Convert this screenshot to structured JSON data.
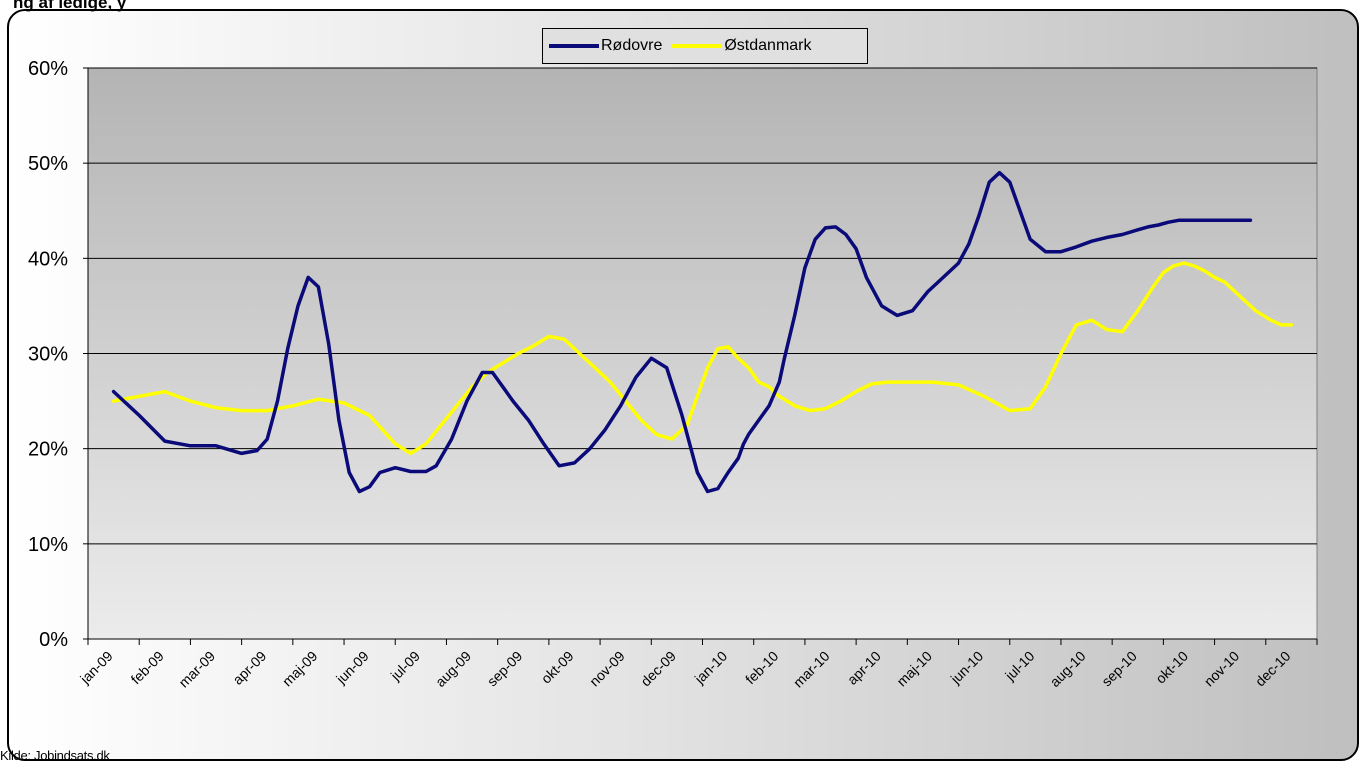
{
  "header": {
    "title_fragment": "ng af ledige, y"
  },
  "source_note": "Kilde: Jobindsats.dk",
  "colors": {
    "rodovre": "#0a0a78",
    "ostdanmark": "#ffff00"
  },
  "chart_data": {
    "type": "line",
    "title": "",
    "xlabel": "",
    "ylabel": "",
    "ylim": [
      0,
      60
    ],
    "yticks": [
      "0%",
      "10%",
      "20%",
      "30%",
      "40%",
      "50%",
      "60%"
    ],
    "categories": [
      "jan-09",
      "feb-09",
      "mar-09",
      "apr-09",
      "maj-09",
      "jun-09",
      "jul-09",
      "aug-09",
      "sep-09",
      "okt-09",
      "nov-09",
      "dec-09",
      "jan-10",
      "feb-10",
      "mar-10",
      "apr-10",
      "maj-10",
      "jun-10",
      "jul-10",
      "aug-10",
      "sep-10",
      "okt-10",
      "nov-10",
      "dec-10"
    ],
    "grid": true,
    "legend": "top-center",
    "series": [
      {
        "name": "Rødovre",
        "color": "#0a0a78",
        "x": [
          0.5,
          1.0,
          1.5,
          2.0,
          2.5,
          3.0,
          3.3,
          3.5,
          3.7,
          3.9,
          4.1,
          4.3,
          4.5,
          4.7,
          4.9,
          5.1,
          5.3,
          5.5,
          5.7,
          6.0,
          6.3,
          6.6,
          6.8,
          7.1,
          7.4,
          7.7,
          7.9,
          8.1,
          8.3,
          8.6,
          8.9,
          9.2,
          9.5,
          9.8,
          10.1,
          10.4,
          10.7,
          11.0,
          11.3,
          11.6,
          11.9,
          12.1,
          12.3,
          12.5,
          12.7,
          12.8,
          12.9,
          13.1,
          13.3,
          13.5,
          13.6,
          13.8,
          14.0,
          14.2,
          14.4,
          14.6,
          14.8,
          15.0,
          15.2,
          15.5,
          15.8,
          16.1,
          16.4,
          16.6,
          16.8,
          17.0,
          17.2,
          17.4,
          17.6,
          17.8,
          18.0,
          18.2,
          18.4,
          18.7,
          19.0,
          19.3,
          19.6,
          19.9,
          20.2,
          20.5,
          20.7,
          20.9,
          21.1,
          21.3,
          21.4,
          21.5,
          21.7,
          21.9,
          22.1,
          22.3,
          22.5,
          22.7,
          23.0,
          23.3,
          23.5
        ],
        "values": [
          26.0,
          23.5,
          20.8,
          20.3,
          20.3,
          19.5,
          19.8,
          21.0,
          25.0,
          30.5,
          35.0,
          38.0,
          37.0,
          31.0,
          23.0,
          17.5,
          15.5,
          16.0,
          17.5,
          18.0,
          17.6,
          17.6,
          18.2,
          21.0,
          25.0,
          28.0,
          28.0,
          26.5,
          25.0,
          23.0,
          20.5,
          18.2,
          18.5,
          20.0,
          22.0,
          24.5,
          27.5,
          29.5,
          28.5,
          23.5,
          17.5,
          15.5,
          15.8,
          17.5,
          19.0,
          20.5,
          21.5,
          23.0,
          24.5,
          27.0,
          29.5,
          34.0,
          39.0,
          42.0,
          43.2,
          43.3,
          42.5,
          41.0,
          38.0,
          35.0,
          34.0,
          34.5,
          36.5,
          37.5,
          38.5,
          39.5,
          41.5,
          44.5,
          48.0,
          49.0,
          48.0,
          45.0,
          42.0,
          40.7,
          40.7,
          41.2,
          41.8,
          42.2,
          42.5,
          43.0,
          43.3,
          43.5,
          43.8,
          44.0,
          44.0,
          44.0,
          44.0,
          44.0,
          44.0,
          44.0,
          44.0,
          44.0,
          44.0,
          44.0,
          44.0
        ]
      },
      {
        "name": "Østdanmark",
        "color": "#ffff00",
        "x": [
          0.5,
          1.0,
          1.5,
          2.0,
          2.5,
          3.0,
          3.5,
          4.0,
          4.5,
          5.0,
          5.5,
          6.0,
          6.3,
          6.6,
          6.9,
          7.2,
          7.5,
          7.8,
          8.1,
          8.4,
          8.7,
          9.0,
          9.3,
          9.6,
          9.9,
          10.2,
          10.5,
          10.8,
          11.1,
          11.4,
          11.7,
          11.9,
          12.1,
          12.3,
          12.5,
          12.7,
          12.9,
          13.1,
          13.3,
          13.5,
          13.8,
          14.1,
          14.4,
          14.7,
          15.0,
          15.3,
          15.6,
          16.0,
          16.5,
          17.0,
          17.5,
          18.0,
          18.4,
          18.7,
          19.0,
          19.3,
          19.6,
          19.9,
          20.2,
          20.5,
          20.8,
          21.0,
          21.2,
          21.4,
          21.6,
          21.8,
          22.0,
          22.2,
          22.5,
          22.8,
          23.1,
          23.3,
          23.5
        ],
        "values": [
          25.0,
          25.5,
          26.0,
          25.0,
          24.3,
          24.0,
          24.0,
          24.5,
          25.2,
          24.8,
          23.5,
          20.5,
          19.5,
          20.5,
          22.5,
          24.5,
          26.5,
          28.0,
          29.0,
          30.0,
          30.8,
          31.8,
          31.5,
          30.0,
          28.5,
          27.0,
          25.0,
          23.0,
          21.5,
          21.0,
          22.5,
          25.5,
          28.5,
          30.5,
          30.7,
          29.5,
          28.5,
          27.0,
          26.5,
          25.5,
          24.5,
          24.0,
          24.2,
          25.0,
          26.0,
          26.8,
          27.0,
          27.0,
          27.0,
          26.7,
          25.5,
          24.0,
          24.2,
          26.5,
          30.0,
          33.0,
          33.5,
          32.5,
          32.3,
          34.5,
          37.0,
          38.5,
          39.2,
          39.5,
          39.2,
          38.7,
          38.0,
          37.5,
          36.0,
          34.5,
          33.5,
          33.0,
          33.0
        ]
      }
    ]
  }
}
